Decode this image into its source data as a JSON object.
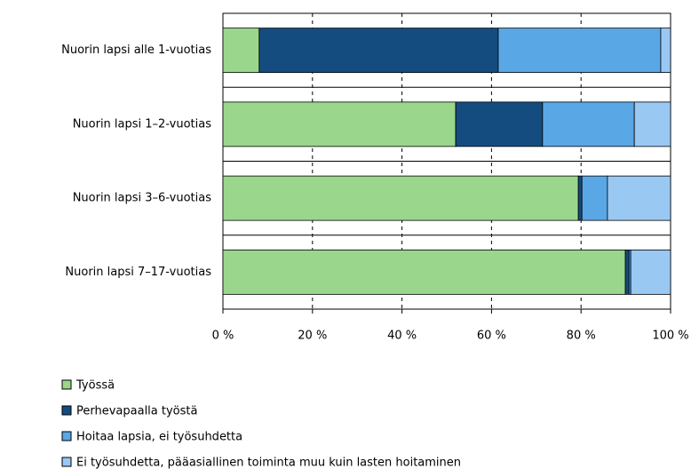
{
  "chart_data": {
    "type": "stacked-bar-horizontal",
    "categories": [
      "Nuorin lapsi alle 1-vuotias",
      "Nuorin lapsi 1–2-vuotias",
      "Nuorin lapsi 3–6-vuotias",
      "Nuorin lapsi 7–17-vuotias"
    ],
    "series": [
      {
        "name": "Työssä",
        "color": "#9ad68c",
        "values": [
          8.1,
          52.0,
          79.4,
          89.9
        ]
      },
      {
        "name": "Perhevapaalla työstä",
        "color": "#154c80",
        "values": [
          53.4,
          19.4,
          0.8,
          0.8
        ]
      },
      {
        "name": "Hoitaa lapsia, ei työsuhdetta",
        "color": "#5aa7e6",
        "values": [
          36.3,
          20.5,
          5.7,
          0.4
        ]
      },
      {
        "name": "Ei työsuhdetta, pääasiallinen toiminta muu kuin lasten hoitaminen",
        "color": "#99c8f2",
        "values": [
          2.2,
          8.1,
          14.1,
          8.9
        ]
      }
    ],
    "xlim": [
      0,
      100
    ],
    "xticks": [
      {
        "value": 0,
        "label": "0 %"
      },
      {
        "value": 20,
        "label": "20 %"
      },
      {
        "value": 40,
        "label": "40 %"
      },
      {
        "value": 60,
        "label": "60 %"
      },
      {
        "value": 80,
        "label": "80 %"
      },
      {
        "value": 100,
        "label": "100 %"
      }
    ],
    "grid": true,
    "legend": "bottom-left"
  }
}
